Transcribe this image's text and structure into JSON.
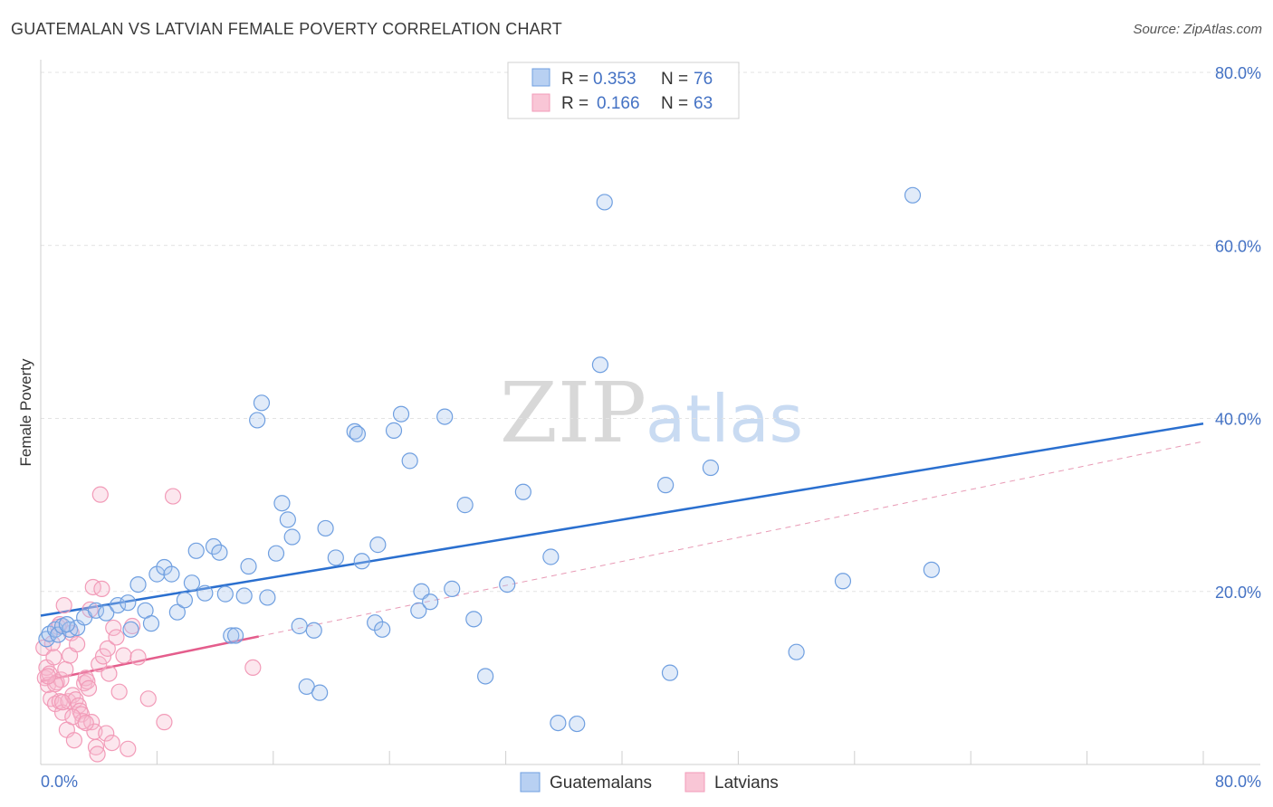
{
  "title": "GUATEMALAN VS LATVIAN FEMALE POVERTY CORRELATION CHART",
  "source": "Source: ZipAtlas.com",
  "watermark": {
    "zip": "ZIP",
    "atlas": "atlas"
  },
  "chart_data": {
    "type": "scatter",
    "xlabel": "",
    "ylabel": "Female Poverty",
    "xlim": [
      0,
      80
    ],
    "ylim": [
      0,
      80
    ],
    "x_ticks": [
      {
        "value": 0,
        "label": "0.0%"
      },
      {
        "value": 80,
        "label": "80.0%"
      }
    ],
    "y_ticks": [
      {
        "value": 20,
        "label": "20.0%"
      },
      {
        "value": 40,
        "label": "40.0%"
      },
      {
        "value": 60,
        "label": "60.0%"
      },
      {
        "value": 80,
        "label": "80.0%"
      }
    ],
    "legend_stats": [
      {
        "r_label": "R =",
        "r_value": "0.353",
        "n_label": "N =",
        "n_value": "76"
      },
      {
        "r_label": "R =",
        "r_value": "0.166",
        "n_label": "N =",
        "n_value": "63"
      }
    ],
    "series": [
      {
        "name": "Guatemalans",
        "color": "#6f9fe0",
        "line_color": "#2a6fcf",
        "trend": {
          "x": [
            0,
            80
          ],
          "y": [
            17.2,
            39.4
          ]
        },
        "points": [
          [
            0.4,
            14.5
          ],
          [
            0.6,
            15.1
          ],
          [
            1.0,
            15.6
          ],
          [
            1.2,
            15.0
          ],
          [
            1.5,
            16.0
          ],
          [
            2.0,
            15.6
          ],
          [
            2.5,
            15.8
          ],
          [
            3.0,
            17.0
          ],
          [
            3.8,
            17.8
          ],
          [
            4.5,
            17.5
          ],
          [
            5.3,
            18.4
          ],
          [
            6.0,
            18.7
          ],
          [
            6.2,
            15.6
          ],
          [
            6.7,
            20.8
          ],
          [
            7.2,
            17.8
          ],
          [
            7.6,
            16.3
          ],
          [
            8.0,
            22.0
          ],
          [
            8.5,
            22.8
          ],
          [
            9.0,
            22.0
          ],
          [
            9.4,
            17.6
          ],
          [
            9.9,
            19.0
          ],
          [
            10.4,
            21.0
          ],
          [
            10.7,
            24.7
          ],
          [
            11.3,
            19.8
          ],
          [
            11.9,
            25.2
          ],
          [
            12.3,
            24.5
          ],
          [
            12.7,
            19.7
          ],
          [
            13.1,
            14.9
          ],
          [
            13.4,
            14.9
          ],
          [
            14.0,
            19.5
          ],
          [
            14.3,
            22.9
          ],
          [
            14.9,
            39.8
          ],
          [
            15.2,
            41.8
          ],
          [
            15.6,
            19.3
          ],
          [
            16.2,
            24.4
          ],
          [
            16.6,
            30.2
          ],
          [
            17.0,
            28.3
          ],
          [
            17.3,
            26.3
          ],
          [
            17.8,
            16.0
          ],
          [
            18.3,
            9.0
          ],
          [
            18.8,
            15.5
          ],
          [
            19.2,
            8.3
          ],
          [
            19.6,
            27.3
          ],
          [
            20.3,
            23.9
          ],
          [
            21.6,
            38.5
          ],
          [
            21.8,
            38.2
          ],
          [
            22.1,
            23.5
          ],
          [
            23.0,
            16.4
          ],
          [
            23.2,
            25.4
          ],
          [
            23.5,
            15.6
          ],
          [
            24.3,
            38.6
          ],
          [
            24.8,
            40.5
          ],
          [
            25.4,
            35.1
          ],
          [
            26.0,
            17.8
          ],
          [
            26.2,
            20.0
          ],
          [
            26.8,
            18.8
          ],
          [
            27.8,
            40.2
          ],
          [
            28.3,
            20.3
          ],
          [
            29.2,
            30.0
          ],
          [
            29.8,
            16.8
          ],
          [
            30.6,
            10.2
          ],
          [
            32.1,
            20.8
          ],
          [
            33.2,
            31.5
          ],
          [
            35.1,
            24.0
          ],
          [
            35.6,
            4.8
          ],
          [
            36.9,
            4.7
          ],
          [
            38.5,
            46.2
          ],
          [
            38.8,
            65.0
          ],
          [
            43.0,
            32.3
          ],
          [
            43.3,
            10.6
          ],
          [
            46.1,
            34.3
          ],
          [
            52.0,
            13.0
          ],
          [
            55.2,
            21.2
          ],
          [
            60.0,
            65.8
          ],
          [
            61.3,
            22.5
          ],
          [
            1.8,
            16.2
          ]
        ]
      },
      {
        "name": "Latvians",
        "color": "#f29bb8",
        "line_color": "#e45d8c",
        "trend": {
          "x": [
            0,
            15
          ],
          "y": [
            9.6,
            14.8
          ]
        },
        "points": [
          [
            0.2,
            13.5
          ],
          [
            0.3,
            10.0
          ],
          [
            0.4,
            11.2
          ],
          [
            0.5,
            9.2
          ],
          [
            0.6,
            10.5
          ],
          [
            0.7,
            7.6
          ],
          [
            0.8,
            14.0
          ],
          [
            0.9,
            12.4
          ],
          [
            1.0,
            7.0
          ],
          [
            1.1,
            9.5
          ],
          [
            1.2,
            15.9
          ],
          [
            1.3,
            7.3
          ],
          [
            1.4,
            9.8
          ],
          [
            1.5,
            6.0
          ],
          [
            1.6,
            18.4
          ],
          [
            1.7,
            11.0
          ],
          [
            1.8,
            4.0
          ],
          [
            1.9,
            7.3
          ],
          [
            2.0,
            12.6
          ],
          [
            2.1,
            15.2
          ],
          [
            2.2,
            8.0
          ],
          [
            2.3,
            2.8
          ],
          [
            2.4,
            7.5
          ],
          [
            2.5,
            13.9
          ],
          [
            2.6,
            6.8
          ],
          [
            2.7,
            6.2
          ],
          [
            2.8,
            5.8
          ],
          [
            2.9,
            5.0
          ],
          [
            3.0,
            9.4
          ],
          [
            3.1,
            10.0
          ],
          [
            3.2,
            9.6
          ],
          [
            3.3,
            8.8
          ],
          [
            3.4,
            17.9
          ],
          [
            3.5,
            4.9
          ],
          [
            3.6,
            20.5
          ],
          [
            3.7,
            3.8
          ],
          [
            3.8,
            2.0
          ],
          [
            3.9,
            1.2
          ],
          [
            4.0,
            11.6
          ],
          [
            4.1,
            31.2
          ],
          [
            4.2,
            20.3
          ],
          [
            4.3,
            12.5
          ],
          [
            4.5,
            3.6
          ],
          [
            4.6,
            13.4
          ],
          [
            4.7,
            10.5
          ],
          [
            4.9,
            2.5
          ],
          [
            5.0,
            15.8
          ],
          [
            5.2,
            14.7
          ],
          [
            5.4,
            8.4
          ],
          [
            5.7,
            12.6
          ],
          [
            6.0,
            1.8
          ],
          [
            6.3,
            16.0
          ],
          [
            6.7,
            12.4
          ],
          [
            7.4,
            7.6
          ],
          [
            8.5,
            4.9
          ],
          [
            9.1,
            31.0
          ],
          [
            14.6,
            11.2
          ],
          [
            1.0,
            9.3
          ],
          [
            0.5,
            10.2
          ],
          [
            1.5,
            7.2
          ],
          [
            2.2,
            5.5
          ],
          [
            3.1,
            4.8
          ],
          [
            1.3,
            16.2
          ]
        ]
      }
    ]
  }
}
